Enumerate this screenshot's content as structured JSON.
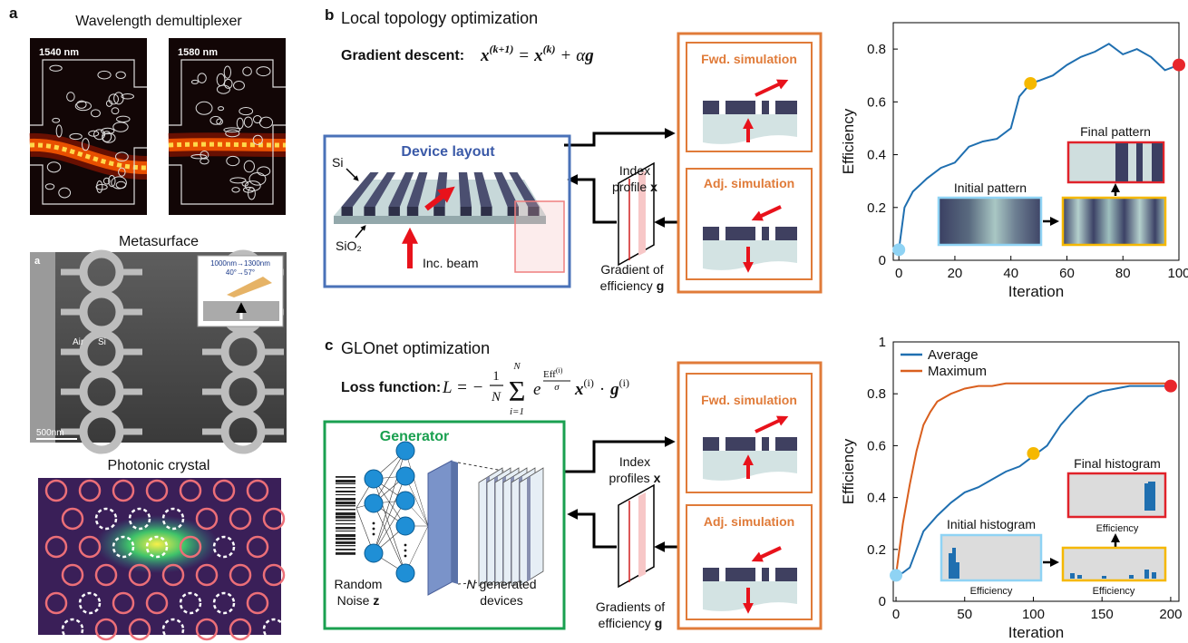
{
  "panel_a": {
    "label": "a",
    "demux": {
      "title": "Wavelength demultiplexer",
      "labels": [
        "1540 nm",
        "1580 nm"
      ]
    },
    "metasurface": {
      "title": "Metasurface",
      "labels": [
        "a",
        "Air",
        "Si",
        "500nm",
        "1000nm→1300nm",
        "40°→57°"
      ]
    },
    "photonic_crystal": {
      "title": "Photonic crystal"
    }
  },
  "panel_b": {
    "label": "b",
    "title": "Local topology optimization",
    "equation_label": "Gradient descent:",
    "equation": {
      "var": "x",
      "next": "(k+1)",
      "eq": "=",
      "cur": "(k)",
      "plus": "+",
      "alpha": "α",
      "grad": "g"
    },
    "device": {
      "title": "Device layout",
      "si": "Si",
      "substrate": "SiO₂",
      "beam": "Inc. beam"
    },
    "forward": {
      "text": [
        "Index",
        "profile"
      ],
      "var": "x"
    },
    "backward": {
      "text": [
        "Gradient of",
        "efficiency"
      ],
      "var": "g"
    },
    "simulations": [
      "Fwd. simulation",
      "Adj. simulation"
    ]
  },
  "panel_c": {
    "label": "c",
    "title": "GLOnet optimization",
    "equation_label": "Loss function:",
    "equation": {
      "lhs": "L = −",
      "num": "1",
      "den": "N",
      "sum": "Σ",
      "upper": "N",
      "lower": "i=1",
      "exp": "e",
      "eff": "Eff",
      "idx": "(i)",
      "sigma": "σ",
      "x": "x",
      "dot": "·",
      "g": "g"
    },
    "generator": {
      "title": "Generator",
      "noise": [
        "Random",
        "Noise"
      ],
      "noise_var": "z",
      "devices_var": "N",
      "devices": [
        "generated",
        "devices"
      ]
    },
    "forward": {
      "text": [
        "Index",
        "profiles"
      ],
      "var": "x"
    },
    "backward": {
      "text": [
        "Gradients of",
        "efficiency"
      ],
      "var": "g"
    },
    "simulations": [
      "Fwd. simulation",
      "Adj. simulation"
    ]
  },
  "chart_data": [
    {
      "type": "line",
      "x_label": "Iteration",
      "y_label": "Efficiency",
      "x": [
        0,
        2,
        5,
        10,
        15,
        20,
        25,
        30,
        35,
        40,
        43,
        47,
        50,
        55,
        60,
        65,
        70,
        75,
        80,
        85,
        90,
        95,
        100
      ],
      "values": [
        0.04,
        0.2,
        0.26,
        0.31,
        0.35,
        0.37,
        0.43,
        0.45,
        0.46,
        0.5,
        0.62,
        0.67,
        0.68,
        0.7,
        0.74,
        0.77,
        0.79,
        0.82,
        0.78,
        0.8,
        0.77,
        0.72,
        0.74
      ],
      "color": "#1f6fb0",
      "xlim": [
        -2,
        100
      ],
      "ylim": [
        0,
        0.9
      ],
      "xticks": [
        0,
        20,
        40,
        60,
        80,
        100
      ],
      "yticks": [
        0,
        0.2,
        0.4,
        0.6,
        0.8
      ],
      "markers": [
        {
          "x": 0,
          "y": 0.04,
          "color": "#8fd3f4"
        },
        {
          "x": 47,
          "y": 0.67,
          "color": "#f5b800"
        },
        {
          "x": 100,
          "y": 0.74,
          "color": "#e8262b"
        }
      ],
      "insets": {
        "final": "Final pattern",
        "initial": "Initial pattern"
      }
    },
    {
      "type": "line",
      "x_label": "Iteration",
      "y_label": "Efficiency",
      "x": [
        0,
        5,
        10,
        15,
        20,
        25,
        30,
        40,
        50,
        60,
        70,
        80,
        90,
        100,
        110,
        120,
        130,
        140,
        150,
        160,
        170,
        180,
        190,
        200
      ],
      "series": [
        {
          "name": "Average",
          "color": "#1f6fb0",
          "values": [
            0.1,
            0.11,
            0.13,
            0.2,
            0.27,
            0.3,
            0.33,
            0.38,
            0.42,
            0.44,
            0.47,
            0.5,
            0.52,
            0.56,
            0.6,
            0.68,
            0.74,
            0.79,
            0.81,
            0.82,
            0.83,
            0.83,
            0.83,
            0.83
          ]
        },
        {
          "name": "Maximum",
          "color": "#d95f1e",
          "values": [
            0.1,
            0.3,
            0.45,
            0.58,
            0.68,
            0.73,
            0.77,
            0.8,
            0.82,
            0.83,
            0.83,
            0.84,
            0.84,
            0.84,
            0.84,
            0.84,
            0.84,
            0.84,
            0.84,
            0.84,
            0.84,
            0.84,
            0.84,
            0.84
          ]
        }
      ],
      "legend": "upper left",
      "xlim": [
        -2,
        206
      ],
      "ylim": [
        0,
        1
      ],
      "xticks": [
        0,
        50,
        100,
        150,
        200
      ],
      "yticks": [
        0,
        0.2,
        0.4,
        0.6,
        0.8,
        1
      ],
      "markers": [
        {
          "x": 0,
          "y": 0.1,
          "color": "#8fd3f4"
        },
        {
          "x": 100,
          "y": 0.57,
          "color": "#f5b800"
        },
        {
          "x": 200,
          "y": 0.83,
          "color": "#e8262b"
        }
      ],
      "insets": {
        "initial": "Initial histogram",
        "final": "Final histogram",
        "axis": "Efficiency"
      }
    }
  ]
}
